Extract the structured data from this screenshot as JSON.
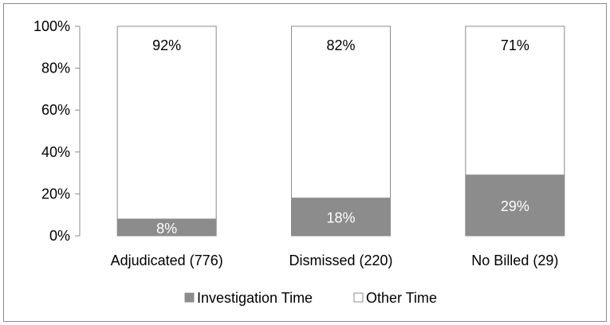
{
  "chart_data": {
    "type": "bar",
    "stacked": true,
    "categories": [
      "Adjudicated (776)",
      "Dismissed (220)",
      "No Billed (29)"
    ],
    "series": [
      {
        "name": "Investigation Time",
        "values": [
          8,
          18,
          29
        ],
        "labels": [
          "8%",
          "18%",
          "29%"
        ],
        "color": "#8c8c8c"
      },
      {
        "name": "Other Time",
        "values": [
          92,
          82,
          71
        ],
        "labels": [
          "92%",
          "82%",
          "71%"
        ],
        "color": "#ffffff"
      }
    ],
    "ylim": [
      0,
      100
    ],
    "yticks": [
      0,
      20,
      40,
      60,
      80,
      100
    ],
    "ytick_labels": [
      "0%",
      "20%",
      "40%",
      "60%",
      "80%",
      "100%"
    ],
    "grid": false,
    "legend_position": "bottom",
    "colors": {
      "investigation": "#8c8c8c",
      "other": "#ffffff",
      "border": "#8c8c8c",
      "axis": "#8c8c8c"
    }
  }
}
